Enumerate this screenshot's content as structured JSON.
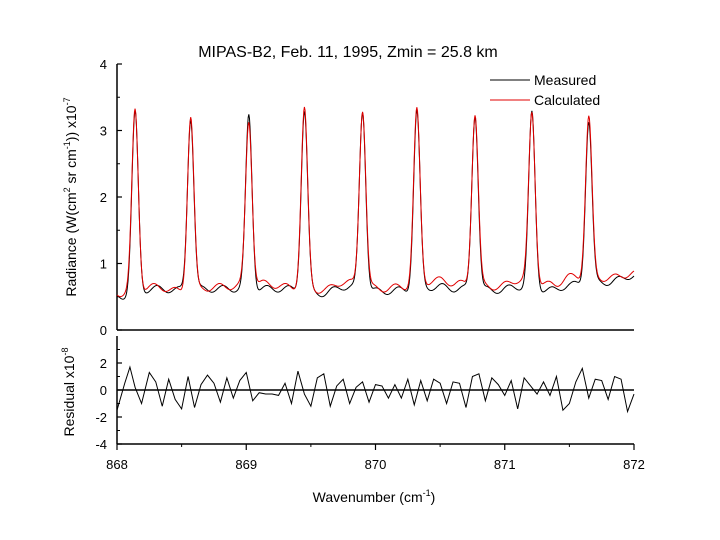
{
  "chart_data": [
    {
      "type": "line",
      "title": "MIPAS-B2, Feb. 11, 1995, Zmin = 25.8 km",
      "ylabel_parts": [
        "Radiance (W(cm",
        "2",
        " sr cm",
        "-1",
        ")) x10",
        "-7"
      ],
      "ylim": [
        0,
        4
      ],
      "yticks": [
        0,
        1,
        2,
        3,
        4
      ],
      "xlim": [
        868,
        872
      ],
      "legend_position": "top-right",
      "grid": false,
      "peaks": [
        868.14,
        868.57,
        869.02,
        869.45,
        869.9,
        870.32,
        870.77,
        871.21,
        871.65
      ],
      "series": [
        {
          "name": "Measured",
          "color": "#000000",
          "peak_heights": [
            3.25,
            3.2,
            3.22,
            3.3,
            3.3,
            3.28,
            3.25,
            3.25,
            3.15
          ],
          "baseline_knots": [
            [
              868.0,
              0.5
            ],
            [
              868.3,
              0.62
            ],
            [
              868.5,
              0.6
            ],
            [
              868.8,
              0.62
            ],
            [
              869.15,
              0.62
            ],
            [
              869.3,
              0.62
            ],
            [
              869.6,
              0.55
            ],
            [
              869.75,
              0.65
            ],
            [
              870.05,
              0.58
            ],
            [
              870.2,
              0.6
            ],
            [
              870.5,
              0.65
            ],
            [
              870.62,
              0.62
            ],
            [
              870.95,
              0.6
            ],
            [
              871.1,
              0.65
            ],
            [
              871.38,
              0.6
            ],
            [
              871.5,
              0.68
            ],
            [
              871.8,
              0.72
            ],
            [
              872.0,
              0.82
            ]
          ]
        },
        {
          "name": "Calculated",
          "color": "#e00000",
          "peak_heights": [
            3.3,
            3.22,
            3.15,
            3.32,
            3.33,
            3.3,
            3.26,
            3.27,
            3.2
          ],
          "baseline_knots": [
            [
              868.0,
              0.55
            ],
            [
              868.3,
              0.65
            ],
            [
              868.5,
              0.58
            ],
            [
              868.8,
              0.65
            ],
            [
              869.15,
              0.7
            ],
            [
              869.3,
              0.65
            ],
            [
              869.6,
              0.6
            ],
            [
              869.75,
              0.72
            ],
            [
              870.05,
              0.62
            ],
            [
              870.2,
              0.65
            ],
            [
              870.5,
              0.75
            ],
            [
              870.62,
              0.7
            ],
            [
              870.95,
              0.65
            ],
            [
              871.1,
              0.75
            ],
            [
              871.38,
              0.68
            ],
            [
              871.5,
              0.8
            ],
            [
              871.8,
              0.78
            ],
            [
              872.0,
              0.85
            ]
          ]
        }
      ]
    },
    {
      "type": "line",
      "ylabel_parts": [
        "Residual x10",
        "-8"
      ],
      "ylim": [
        -4,
        4
      ],
      "yticks": [
        -4,
        -2,
        0,
        2
      ],
      "xlabel_parts": [
        "Wavenumber (cm",
        "-1",
        ")"
      ],
      "xlim": [
        868,
        872
      ],
      "xticks": [
        868,
        869,
        870,
        871,
        872
      ],
      "zero_line": true,
      "series": [
        {
          "name": "Residual",
          "color": "#000000",
          "x": [
            868.0,
            868.06,
            868.1,
            868.14,
            868.19,
            868.25,
            868.3,
            868.35,
            868.4,
            868.45,
            868.5,
            868.55,
            868.6,
            868.65,
            868.7,
            868.75,
            868.8,
            868.85,
            868.9,
            868.95,
            869.0,
            869.05,
            869.1,
            869.15,
            869.2,
            869.25,
            869.3,
            869.35,
            869.4,
            869.45,
            869.5,
            869.55,
            869.6,
            869.65,
            869.7,
            869.75,
            869.8,
            869.85,
            869.9,
            869.95,
            870.0,
            870.05,
            870.1,
            870.15,
            870.2,
            870.25,
            870.3,
            870.35,
            870.4,
            870.45,
            870.5,
            870.55,
            870.6,
            870.65,
            870.7,
            870.75,
            870.8,
            870.85,
            870.9,
            870.95,
            871.0,
            871.05,
            871.1,
            871.15,
            871.2,
            871.25,
            871.3,
            871.35,
            871.4,
            871.45,
            871.5,
            871.55,
            871.6,
            871.65,
            871.7,
            871.75,
            871.8,
            871.85,
            871.9,
            871.95,
            872.0
          ],
          "y": [
            -1.5,
            0.5,
            1.7,
            0.2,
            -1.0,
            1.3,
            0.6,
            -1.2,
            0.8,
            -0.7,
            -1.4,
            1.0,
            -1.3,
            0.4,
            1.1,
            0.5,
            -0.9,
            0.9,
            -0.6,
            0.7,
            1.3,
            -0.8,
            -0.2,
            -0.3,
            -0.3,
            -0.4,
            0.5,
            -1.0,
            1.4,
            -0.3,
            -1.2,
            0.9,
            1.2,
            -1.2,
            0.3,
            0.8,
            -1.0,
            0.2,
            0.6,
            -0.9,
            0.4,
            0.3,
            -0.6,
            0.4,
            -0.6,
            0.8,
            -1.1,
            0.7,
            -0.8,
            0.8,
            0.5,
            -1.0,
            0.6,
            0.5,
            -1.3,
            1.0,
            1.2,
            -0.8,
            0.9,
            0.4,
            -0.4,
            0.7,
            -1.4,
            0.9,
            0.3,
            -0.3,
            0.6,
            -0.4,
            1.0,
            -1.5,
            -1.0,
            0.6,
            1.6,
            -0.6,
            0.8,
            0.7,
            -0.7,
            1.0,
            0.8,
            -1.6,
            -0.3
          ]
        }
      ]
    }
  ]
}
